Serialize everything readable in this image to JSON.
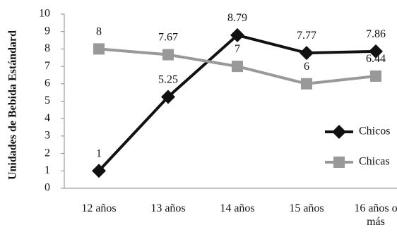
{
  "chart_data": {
    "type": "line",
    "title": "",
    "xlabel": "",
    "ylabel": "Unidades de Bebida Estándard",
    "categories": [
      "12 años",
      "13 años",
      "14 años",
      "15 años",
      "16 años o más"
    ],
    "ylim": [
      0,
      10
    ],
    "yticks": [
      "0",
      "1",
      "2",
      "3",
      "4",
      "5",
      "6",
      "7",
      "8",
      "9",
      "10"
    ],
    "grid": false,
    "legend_position": "right",
    "series": [
      {
        "name": "Chicos",
        "values": [
          1,
          5.25,
          8.79,
          7.77,
          7.86
        ],
        "labels": [
          "1",
          "5.25",
          "8.79",
          "7.77",
          "7.86"
        ],
        "color": "#111111",
        "marker": "diamond"
      },
      {
        "name": "Chicas",
        "values": [
          8,
          7.67,
          7,
          6,
          6.44
        ],
        "labels": [
          "8",
          "7.67",
          "7",
          "6",
          "6.44"
        ],
        "color": "#999999",
        "marker": "square"
      }
    ]
  }
}
